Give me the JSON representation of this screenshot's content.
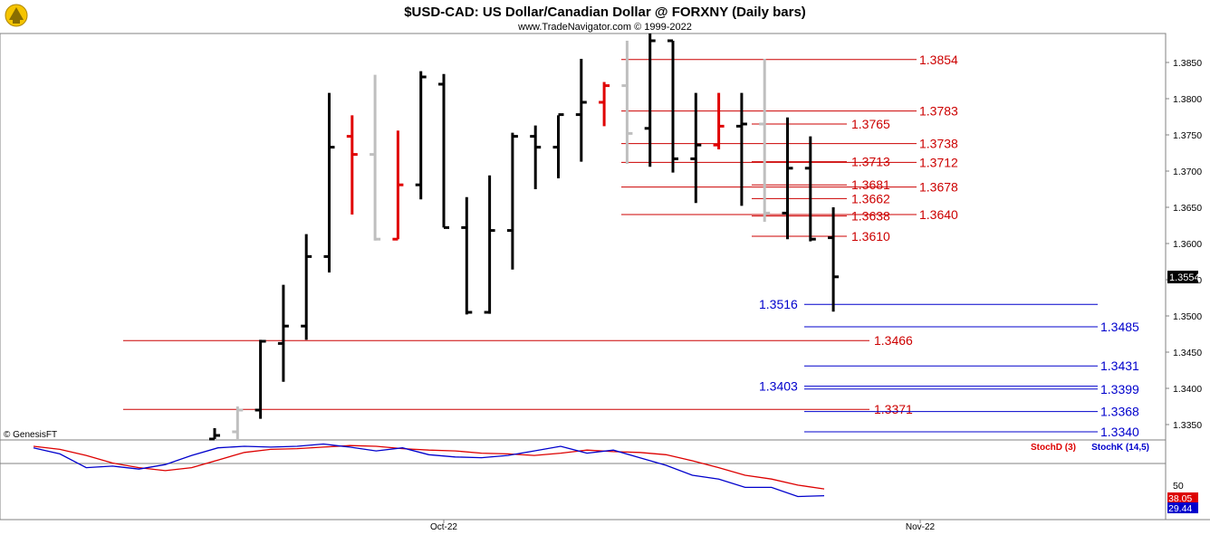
{
  "header": {
    "title": "$USD-CAD:  US Dollar/Canadian Dollar @ FORXNY  (Daily bars)",
    "subtitle": "www.TradeNavigator.com © 1999-2022"
  },
  "watermark": "© GenesisFT",
  "last_price_label": "1.3554",
  "colors": {
    "up_bar": "#000000",
    "down_bar_red": "#e00000",
    "neutral_bar": "#bfbfbf",
    "resistance": "#cc0000",
    "support": "#0000cc",
    "stoch_d": "#dd0000",
    "stoch_k": "#0000cc"
  },
  "chart_data": [
    {
      "type": "ohlc",
      "title": "$USD-CAD:  US Dollar/Canadian Dollar @ FORXNY  (Daily bars)",
      "ylim": [
        1.3315,
        1.3885
      ],
      "y_ticks": [
        "1.3350",
        "1.3400",
        "1.3450",
        "1.3500",
        "1.3550",
        "1.3600",
        "1.3650",
        "1.3700",
        "1.3750",
        "1.3800",
        "1.3850"
      ],
      "x_labels": [
        "Oct-22",
        "Nov-22"
      ],
      "bars": [
        {
          "o": 1.333,
          "h": 1.3345,
          "l": 1.3315,
          "c": 1.3335,
          "col": "k"
        },
        {
          "o": 1.334,
          "h": 1.3375,
          "l": 1.3315,
          "c": 1.337,
          "col": "g"
        },
        {
          "o": 1.337,
          "h": 1.3467,
          "l": 1.3358,
          "c": 1.3465,
          "col": "k"
        },
        {
          "o": 1.3462,
          "h": 1.3543,
          "l": 1.3409,
          "c": 1.3486,
          "col": "k"
        },
        {
          "o": 1.3486,
          "h": 1.3613,
          "l": 1.3467,
          "c": 1.3582,
          "col": "k"
        },
        {
          "o": 1.3582,
          "h": 1.3808,
          "l": 1.356,
          "c": 1.3733,
          "col": "k"
        },
        {
          "o": 1.3748,
          "h": 1.3777,
          "l": 1.364,
          "c": 1.3723,
          "col": "r"
        },
        {
          "o": 1.3723,
          "h": 1.3833,
          "l": 1.3604,
          "c": 1.3606,
          "col": "g"
        },
        {
          "o": 1.3606,
          "h": 1.3756,
          "l": 1.3606,
          "c": 1.3681,
          "col": "r"
        },
        {
          "o": 1.3681,
          "h": 1.3838,
          "l": 1.3661,
          "c": 1.383,
          "col": "k"
        },
        {
          "o": 1.382,
          "h": 1.3834,
          "l": 1.3622,
          "c": 1.3622,
          "col": "k"
        },
        {
          "o": 1.3622,
          "h": 1.3664,
          "l": 1.3502,
          "c": 1.3505,
          "col": "k"
        },
        {
          "o": 1.3505,
          "h": 1.3694,
          "l": 1.3503,
          "c": 1.3618,
          "col": "k"
        },
        {
          "o": 1.3618,
          "h": 1.3753,
          "l": 1.3564,
          "c": 1.3748,
          "col": "k"
        },
        {
          "o": 1.3748,
          "h": 1.3763,
          "l": 1.3675,
          "c": 1.3733,
          "col": "k"
        },
        {
          "o": 1.3733,
          "h": 1.3777,
          "l": 1.369,
          "c": 1.3778,
          "col": "k"
        },
        {
          "o": 1.3778,
          "h": 1.3855,
          "l": 1.3713,
          "c": 1.3795,
          "col": "k"
        },
        {
          "o": 1.3795,
          "h": 1.3823,
          "l": 1.3762,
          "c": 1.3818,
          "col": "r"
        },
        {
          "o": 1.3818,
          "h": 1.388,
          "l": 1.371,
          "c": 1.3752,
          "col": "g"
        },
        {
          "o": 1.3759,
          "h": 1.389,
          "l": 1.3706,
          "c": 1.388,
          "col": "k"
        },
        {
          "o": 1.388,
          "h": 1.388,
          "l": 1.3698,
          "c": 1.3717,
          "col": "k"
        },
        {
          "o": 1.3717,
          "h": 1.3808,
          "l": 1.3656,
          "c": 1.3736,
          "col": "k"
        },
        {
          "o": 1.3736,
          "h": 1.3808,
          "l": 1.373,
          "c": 1.3762,
          "col": "r"
        },
        {
          "o": 1.3762,
          "h": 1.3808,
          "l": 1.3652,
          "c": 1.3765,
          "col": "k"
        },
        {
          "o": 1.3765,
          "h": 1.3855,
          "l": 1.363,
          "c": 1.3642,
          "col": "g"
        },
        {
          "o": 1.3642,
          "h": 1.3774,
          "l": 1.3606,
          "c": 1.3704,
          "col": "k"
        },
        {
          "o": 1.3704,
          "h": 1.3748,
          "l": 1.3603,
          "c": 1.3606,
          "col": "k"
        },
        {
          "o": 1.3608,
          "h": 1.365,
          "l": 1.3506,
          "c": 1.3554,
          "col": "k"
        }
      ]
    },
    {
      "type": "hline_levels",
      "resistance_levels": [
        {
          "value": 1.3854,
          "label": "1.3854"
        },
        {
          "value": 1.3783,
          "label": "1.3783"
        },
        {
          "value": 1.3765,
          "label": "1.3765"
        },
        {
          "value": 1.3738,
          "label": "1.3738"
        },
        {
          "value": 1.3713,
          "label": "1.3713"
        },
        {
          "value": 1.3712,
          "label": "1.3712"
        },
        {
          "value": 1.3681,
          "label": "1.3681"
        },
        {
          "value": 1.3678,
          "label": "1.3678"
        },
        {
          "value": 1.3662,
          "label": "1.3662"
        },
        {
          "value": 1.3638,
          "label": "1.3638"
        },
        {
          "value": 1.364,
          "label": "1.3640"
        },
        {
          "value": 1.361,
          "label": "1.3610"
        },
        {
          "value": 1.3466,
          "label": "1.3466"
        },
        {
          "value": 1.3371,
          "label": "1.3371"
        }
      ],
      "support_levels": [
        {
          "value": 1.3516,
          "label": "1.3516"
        },
        {
          "value": 1.3485,
          "label": "1.3485"
        },
        {
          "value": 1.3431,
          "label": "1.3431"
        },
        {
          "value": 1.3403,
          "label": "1.3403"
        },
        {
          "value": 1.3399,
          "label": "1.3399"
        },
        {
          "value": 1.3368,
          "label": "1.3368"
        },
        {
          "value": 1.334,
          "label": "1.3340"
        }
      ]
    },
    {
      "type": "line",
      "title": "",
      "ylim": [
        0,
        100
      ],
      "y_ticks": [
        "50"
      ],
      "series": [
        {
          "name": "StochD (3)",
          "color": "#dd0000",
          "last_label": "38.05",
          "values": [
            94,
            90,
            82,
            72,
            66,
            62,
            66,
            76,
            86,
            90,
            91,
            93,
            95,
            94,
            91,
            89,
            88,
            85,
            84,
            82,
            85,
            89,
            87,
            86,
            83,
            75,
            66,
            56,
            51,
            43,
            38
          ]
        },
        {
          "name": "StochK (14,5)",
          "color": "#0000cc",
          "last_label": "29.44",
          "values": [
            92,
            84,
            66,
            68,
            64,
            70,
            82,
            92,
            94,
            93,
            94,
            97,
            93,
            88,
            92,
            83,
            80,
            79,
            82,
            88,
            94,
            85,
            89,
            79,
            69,
            56,
            51,
            40,
            40,
            28,
            29
          ]
        }
      ]
    }
  ]
}
